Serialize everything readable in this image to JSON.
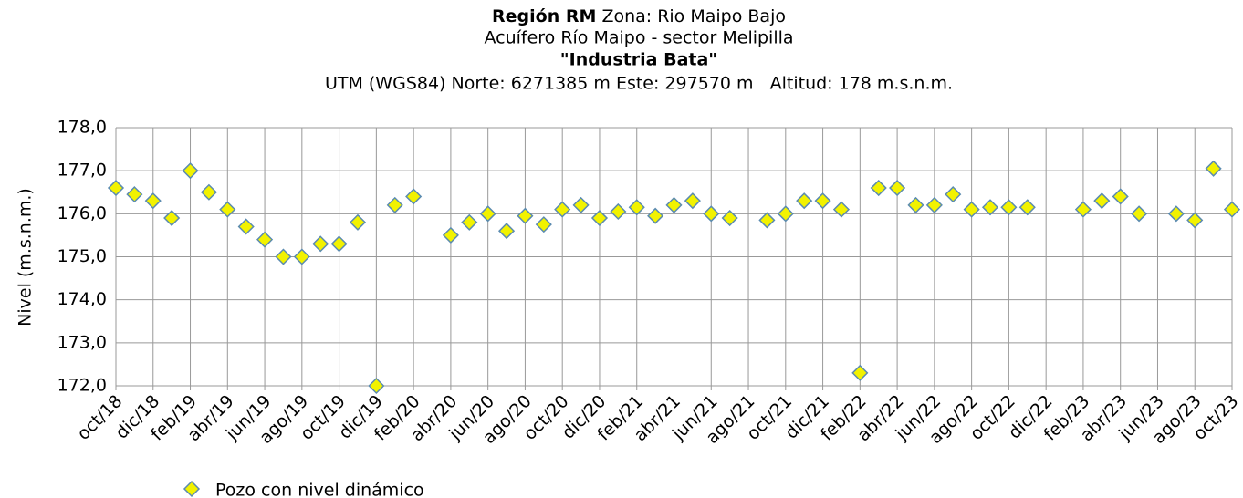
{
  "chart_data": {
    "type": "scatter",
    "title_bold": "Región RM",
    "title_rest": "Zona: Rio Maipo Bajo",
    "subtitle": "Acuífero Río Maipo - sector Melipilla",
    "well_name": "\"Industria Bata\"",
    "location": "UTM (WGS84) Norte: 6271385 m Este: 297570 m   Altitud: 178 m.s.n.m.",
    "y_label": "Nivel (m.s.n.m.)",
    "grid": true,
    "xlim": [
      "2018-10",
      "2023-10"
    ],
    "xticks": [
      {
        "value": "2018-10",
        "label": "oct/18"
      },
      {
        "value": "2018-12",
        "label": "dic/18"
      },
      {
        "value": "2019-02",
        "label": "feb/19"
      },
      {
        "value": "2019-04",
        "label": "abr/19"
      },
      {
        "value": "2019-06",
        "label": "jun/19"
      },
      {
        "value": "2019-08",
        "label": "ago/19"
      },
      {
        "value": "2019-10",
        "label": "oct/19"
      },
      {
        "value": "2019-12",
        "label": "dic/19"
      },
      {
        "value": "2020-02",
        "label": "feb/20"
      },
      {
        "value": "2020-04",
        "label": "abr/20"
      },
      {
        "value": "2020-06",
        "label": "jun/20"
      },
      {
        "value": "2020-08",
        "label": "ago/20"
      },
      {
        "value": "2020-10",
        "label": "oct/20"
      },
      {
        "value": "2020-12",
        "label": "dic/20"
      },
      {
        "value": "2021-02",
        "label": "feb/21"
      },
      {
        "value": "2021-04",
        "label": "abr/21"
      },
      {
        "value": "2021-06",
        "label": "jun/21"
      },
      {
        "value": "2021-08",
        "label": "ago/21"
      },
      {
        "value": "2021-10",
        "label": "oct/21"
      },
      {
        "value": "2021-12",
        "label": "dic/21"
      },
      {
        "value": "2022-02",
        "label": "feb/22"
      },
      {
        "value": "2022-04",
        "label": "abr/22"
      },
      {
        "value": "2022-06",
        "label": "jun/22"
      },
      {
        "value": "2022-08",
        "label": "ago/22"
      },
      {
        "value": "2022-10",
        "label": "oct/22"
      },
      {
        "value": "2022-12",
        "label": "dic/22"
      },
      {
        "value": "2023-02",
        "label": "feb/23"
      },
      {
        "value": "2023-04",
        "label": "abr/23"
      },
      {
        "value": "2023-06",
        "label": "jun/23"
      },
      {
        "value": "2023-08",
        "label": "ago/23"
      },
      {
        "value": "2023-10",
        "label": "oct/23"
      }
    ],
    "ylim": [
      172,
      178
    ],
    "yticks": [
      {
        "value": 172,
        "label": "172,0"
      },
      {
        "value": 173,
        "label": "173,0"
      },
      {
        "value": 174,
        "label": "174,0"
      },
      {
        "value": 175,
        "label": "175,0"
      },
      {
        "value": 176,
        "label": "176,0"
      },
      {
        "value": 177,
        "label": "177,0"
      },
      {
        "value": 178,
        "label": "178,0"
      }
    ],
    "x": [
      "2018-10",
      "2018-11",
      "2018-12",
      "2019-01",
      "2019-02",
      "2019-03",
      "2019-04",
      "2019-05",
      "2019-06",
      "2019-07",
      "2019-08",
      "2019-09",
      "2019-10",
      "2019-11",
      "2019-12",
      "2020-01",
      "2020-02",
      "2020-04",
      "2020-05",
      "2020-06",
      "2020-07",
      "2020-08",
      "2020-09",
      "2020-10",
      "2020-11",
      "2020-12",
      "2021-01",
      "2021-02",
      "2021-03",
      "2021-04",
      "2021-05",
      "2021-06",
      "2021-07",
      "2021-09",
      "2021-10",
      "2021-11",
      "2021-12",
      "2022-01",
      "2022-02",
      "2022-03",
      "2022-04",
      "2022-05",
      "2022-06",
      "2022-07",
      "2022-08",
      "2022-09",
      "2022-10",
      "2022-11",
      "2023-02",
      "2023-03",
      "2023-04",
      "2023-05",
      "2023-07",
      "2023-08",
      "2023-09",
      "2023-10"
    ],
    "series": [
      {
        "name": "Pozo con nivel dinámico",
        "color": "#f2f200",
        "edge_color": "#5b8bb0",
        "values": [
          176.6,
          176.45,
          176.3,
          175.9,
          177.0,
          176.5,
          176.1,
          175.7,
          175.4,
          175.0,
          175.0,
          175.3,
          175.3,
          175.8,
          172.0,
          176.2,
          176.4,
          175.5,
          175.8,
          176.0,
          175.6,
          175.95,
          175.75,
          176.1,
          176.2,
          175.9,
          176.05,
          176.15,
          175.95,
          176.2,
          176.3,
          176.0,
          175.9,
          175.85,
          176.0,
          176.3,
          176.3,
          176.1,
          172.3,
          176.6,
          176.6,
          176.2,
          176.2,
          176.45,
          176.1,
          176.15,
          176.15,
          176.15,
          176.1,
          176.3,
          176.4,
          176.0,
          176.0,
          175.85,
          177.05,
          176.1
        ]
      }
    ]
  }
}
